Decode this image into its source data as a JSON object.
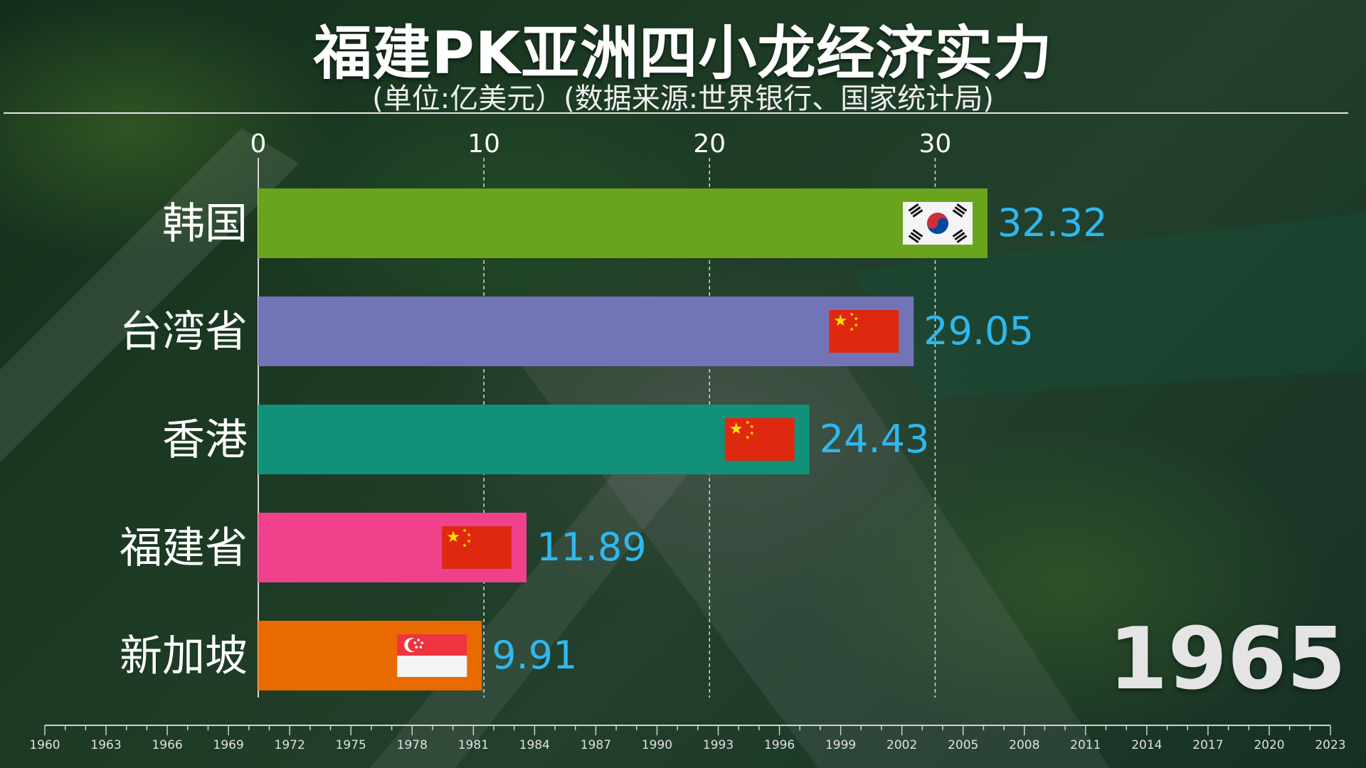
{
  "title": "福建PK亚洲四小龙经济实力",
  "subtitle": "(单位:亿美元）(数据来源:世界银行、国家统计局)",
  "current_year": "1965",
  "colors": {
    "value_text": "#2fb8ee",
    "axis": "#e6e6e6"
  },
  "chart_data": {
    "type": "bar",
    "orientation": "horizontal",
    "title": "福建PK亚洲四小龙经济实力",
    "subtitle": "(单位:亿美元）(数据来源:世界银行、国家统计局)",
    "categories": [
      "韩国",
      "台湾省",
      "香港",
      "福建省",
      "新加坡"
    ],
    "values": [
      32.32,
      29.05,
      24.43,
      11.89,
      9.91
    ],
    "value_labels": [
      "32.32",
      "29.05",
      "24.43",
      "11.89",
      "9.91"
    ],
    "bar_colors": [
      "#6aa31c",
      "#7373b8",
      "#11917a",
      "#f0418c",
      "#e96a00"
    ],
    "flags": [
      "south-korea-flag-icon",
      "china-flag-icon",
      "china-flag-icon",
      "china-flag-icon",
      "singapore-flag-icon"
    ],
    "xlim": [
      0,
      32.32
    ],
    "x_ticks": [
      0,
      10,
      20,
      30
    ],
    "x_tick_labels": [
      "0",
      "10",
      "20",
      "30"
    ],
    "grid": true,
    "timeline_ticks": [
      "1960",
      "1963",
      "1966",
      "1969",
      "1972",
      "1975",
      "1978",
      "1981",
      "1984",
      "1987",
      "1990",
      "1993",
      "1996",
      "1999",
      "2002",
      "2005",
      "2008",
      "2011",
      "2014",
      "2017",
      "2020",
      "2023"
    ]
  }
}
